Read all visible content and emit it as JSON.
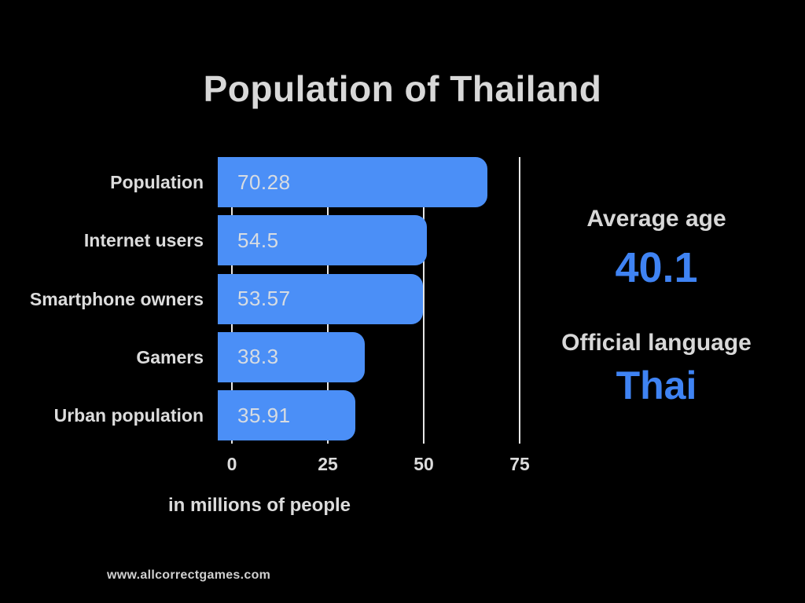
{
  "title": "Population of Thailand",
  "chart_data": {
    "type": "bar",
    "orientation": "horizontal",
    "title": "Population of Thailand",
    "categories": [
      "Population",
      "Internet users",
      "Smartphone owners",
      "Gamers",
      "Urban population"
    ],
    "values": [
      70.28,
      54.5,
      53.57,
      38.3,
      35.91
    ],
    "value_labels": [
      "70.28",
      "54.5",
      "53.57",
      "38.3",
      "35.91"
    ],
    "xlabel": "in millions of people",
    "ylabel": "",
    "xlim": [
      0,
      75
    ],
    "xticks": [
      0,
      25,
      50,
      75
    ],
    "grid": true,
    "legend": false
  },
  "stats": {
    "average_age_label": "Average age",
    "average_age_value": "40.1",
    "language_label": "Official language",
    "language_value": "Thai"
  },
  "footer": {
    "website": "www.allcorrectgames.com"
  },
  "colors": {
    "background": "#000000",
    "title_text": "#d8d8d8",
    "label_text": "#dcdcdc",
    "bar_fill": "#4b8ff7",
    "bar_value_text": "#d7dce2",
    "accent_blue": "#3f83f3",
    "gridline": "#e6e6e6",
    "footer_text": "#cfcfcf"
  }
}
